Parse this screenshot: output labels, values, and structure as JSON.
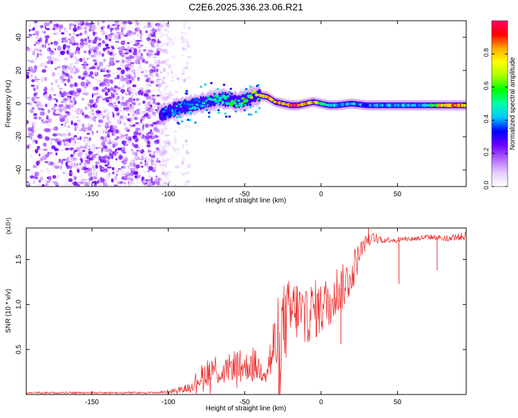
{
  "page_title": "C2E6.2025.336.23.06.R21",
  "chart_data": [
    {
      "type": "heatmap",
      "title": "C2E6.2025.336.23.06.R21",
      "xlabel": "Height of straight line (km)",
      "ylabel": "Frequency (Hz)",
      "xlim": [
        -193,
        95
      ],
      "ylim": [
        -50,
        50
      ],
      "xticks": [
        -150,
        -100,
        -50,
        0,
        50
      ],
      "xtick_labels": [
        "-150",
        "-100",
        "-50",
        "0",
        "50"
      ],
      "yticks": [
        -40,
        -20,
        0,
        20,
        40
      ],
      "ytick_labels": [
        "-40",
        "-20",
        "0",
        "20",
        "40"
      ],
      "colorbar": {
        "label": "Normalized spectral amplitude",
        "range": [
          0,
          1
        ],
        "ticks": [
          0.0,
          0.2,
          0.4,
          0.6,
          0.8
        ],
        "tick_labels": [
          "0.0",
          "0.2",
          "0.4",
          "0.6",
          "0.8"
        ],
        "colors": [
          "#ffffff",
          "#e6ccff",
          "#b366ff",
          "#6a00ff",
          "#0000ff",
          "#00c8ff",
          "#00ffaa",
          "#00ff00",
          "#aaff00",
          "#ffff00",
          "#ffaa00",
          "#ff0000",
          "#ff0066"
        ]
      },
      "ridge": {
        "x": [
          -105,
          -100,
          -95,
          -90,
          -85,
          -80,
          -75,
          -70,
          -65,
          -60,
          -55,
          -50,
          -45,
          -40,
          -35,
          -30,
          -25,
          -20,
          -15,
          -10,
          -5,
          0,
          5,
          10,
          20,
          30,
          40,
          50,
          60,
          70,
          80,
          90,
          95
        ],
        "y": [
          -7,
          -5,
          -3,
          -2,
          -1,
          0,
          1,
          2,
          3,
          2,
          1,
          2,
          4,
          5,
          4,
          1,
          0,
          -1,
          -1,
          0,
          1,
          0,
          -1,
          -1,
          0,
          -1,
          -1,
          -1,
          -1,
          -1,
          -1,
          -1,
          -1
        ],
        "amplitude": [
          0.35,
          0.38,
          0.4,
          0.42,
          0.45,
          0.45,
          0.5,
          0.5,
          0.5,
          0.55,
          0.55,
          0.6,
          0.65,
          0.85,
          0.85,
          0.9,
          0.85,
          0.95,
          0.95,
          0.85,
          0.85,
          0.6,
          0.5,
          0.45,
          0.45,
          0.4,
          0.45,
          0.45,
          0.45,
          0.45,
          0.9,
          0.95,
          0.95
        ]
      },
      "noise_region": {
        "x_from": -193,
        "x_to": -100,
        "max_amplitude": 0.25
      }
    },
    {
      "type": "line",
      "xlabel": "Height of straight line (km)",
      "ylabel": "SNR (10 * v/v)",
      "y_multiplier": "(x10⁴)",
      "xlim": [
        -193,
        95
      ],
      "ylim": [
        0,
        1.85
      ],
      "xticks": [
        -150,
        -100,
        -50,
        0,
        50
      ],
      "xtick_labels": [
        "-150",
        "-100",
        "-50",
        "0",
        "50"
      ],
      "yticks": [
        0.5,
        1.0,
        1.5
      ],
      "ytick_labels": [
        "0.5",
        "1.0",
        "1.5"
      ],
      "series": [
        {
          "name": "SNR",
          "color": "#ee2b2b",
          "x": [
            -193,
            -150,
            -110,
            -100,
            -95,
            -90,
            -85,
            -80,
            -75,
            -70,
            -65,
            -60,
            -55,
            -50,
            -45,
            -40,
            -35,
            -30,
            -25,
            -20,
            -15,
            -10,
            -5,
            0,
            5,
            10,
            15,
            20,
            25,
            30,
            35,
            40,
            50,
            60,
            70,
            80,
            90,
            95
          ],
          "y": [
            0.02,
            0.02,
            0.02,
            0.03,
            0.05,
            0.06,
            0.1,
            0.18,
            0.25,
            0.3,
            0.22,
            0.3,
            0.35,
            0.3,
            0.35,
            0.28,
            0.3,
            0.55,
            0.75,
            0.9,
            0.95,
            0.85,
            0.95,
            0.95,
            1.05,
            1.15,
            1.2,
            1.35,
            1.55,
            1.72,
            1.75,
            1.72,
            1.72,
            1.73,
            1.75,
            1.74,
            1.75,
            1.76
          ],
          "spread": [
            0.01,
            0.01,
            0.01,
            0.02,
            0.03,
            0.04,
            0.06,
            0.12,
            0.16,
            0.2,
            0.12,
            0.15,
            0.18,
            0.15,
            0.2,
            0.15,
            0.18,
            0.45,
            0.5,
            0.4,
            0.35,
            0.3,
            0.35,
            0.3,
            0.3,
            0.3,
            0.25,
            0.25,
            0.15,
            0.06,
            0.05,
            0.04,
            0.03,
            0.03,
            0.03,
            0.03,
            0.04,
            0.05
          ],
          "spikes": [
            {
              "x": 51,
              "y": 1.23
            },
            {
              "x": 76,
              "y": 1.38
            },
            {
              "x": 13,
              "y": 0.56
            },
            {
              "x": 31,
              "y": 1.86
            }
          ]
        }
      ]
    }
  ]
}
